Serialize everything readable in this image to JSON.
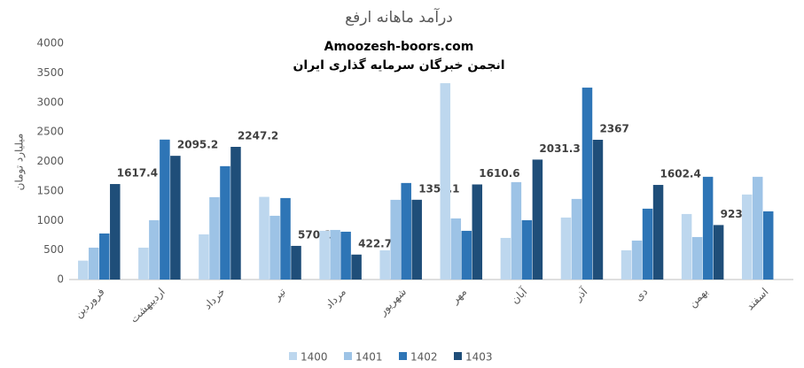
{
  "chart_data": {
    "type": "bar",
    "title": "درآمد ماهانه ارفع",
    "annotations": [
      "Amoozesh-boors.com",
      "انجمن خبرگان سرمایه گذاری ایران"
    ],
    "y_label": "میلیارد تومان",
    "categories": [
      "فروردین",
      "اردیبهشت",
      "خرداد",
      "تیر",
      "مرداد",
      "شهریور",
      "مهر",
      "آبان",
      "آذر",
      "دی",
      "بهمن",
      "اسفند"
    ],
    "series": [
      {
        "name": "1400",
        "color": "#bdd7ee",
        "values": [
          320,
          540,
          765,
          1400,
          825,
          495,
          3325,
          705,
          1050,
          495,
          1110,
          1440
        ]
      },
      {
        "name": "1401",
        "color": "#9dc3e6",
        "values": [
          540,
          1005,
          1395,
          1080,
          840,
          1350,
          1035,
          1650,
          1365,
          660,
          720,
          1740
        ]
      },
      {
        "name": "1402",
        "color": "#2e75b6",
        "values": [
          780,
          2370,
          1920,
          1380,
          810,
          1635,
          825,
          1005,
          3250,
          1200,
          1740,
          1155
        ]
      },
      {
        "name": "1403",
        "color": "#1f4e79",
        "values": [
          1617.4,
          2095.2,
          2247.2,
          570.1,
          422.7,
          1351.1,
          1610.6,
          2031.3,
          2367,
          1602.4,
          923,
          null
        ],
        "data_labels": true
      }
    ],
    "ylim": [
      0,
      4000
    ],
    "yticks": [
      0,
      500,
      1000,
      1500,
      2000,
      2500,
      3000,
      3500,
      4000
    ],
    "grid": false,
    "legend": "bottom"
  }
}
